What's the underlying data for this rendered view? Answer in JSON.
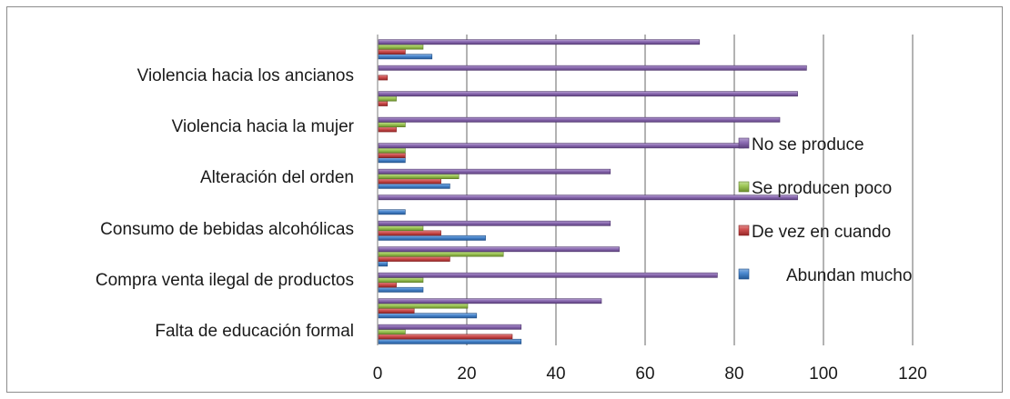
{
  "chart_data": {
    "type": "bar",
    "orientation": "horizontal",
    "title": "",
    "xlabel": "",
    "ylabel": "",
    "xlim": [
      0,
      120
    ],
    "x_ticks": [
      "0",
      "20",
      "40",
      "60",
      "80",
      "100",
      "120"
    ],
    "grid": true,
    "legend_position": "right",
    "category_labels": [
      "Falta de educación formal",
      "Compra venta ilegal de productos",
      "Consumo de bebidas alcohólicas",
      "Alteración del orden",
      "Violencia hacia la mujer",
      "Violencia hacia los ancianos"
    ],
    "categories": [
      "Falta de educación formal",
      "",
      "Compra venta ilegal de productos",
      "",
      "Consumo de bebidas alcohólicas",
      "",
      "Alteración del orden",
      "",
      "Violencia hacia la mujer",
      "",
      "Violencia hacia los ancianos",
      ""
    ],
    "series": [
      {
        "name": "Abundan mucho",
        "color": "#2e75c8",
        "values": [
          32,
          22,
          10,
          2,
          24,
          6,
          16,
          6,
          0,
          0,
          0,
          12
        ]
      },
      {
        "name": "De vez en cuando",
        "color": "#c83232",
        "values": [
          30,
          8,
          4,
          16,
          14,
          0,
          14,
          6,
          4,
          2,
          2,
          6
        ]
      },
      {
        "name": "Se producen poco",
        "color": "#8fbf3c",
        "values": [
          6,
          20,
          10,
          28,
          10,
          0,
          18,
          6,
          6,
          4,
          0,
          10
        ]
      },
      {
        "name": "No se produce",
        "color": "#7a54a8",
        "values": [
          32,
          50,
          76,
          54,
          52,
          94,
          52,
          82,
          90,
          94,
          96,
          72
        ]
      }
    ]
  }
}
